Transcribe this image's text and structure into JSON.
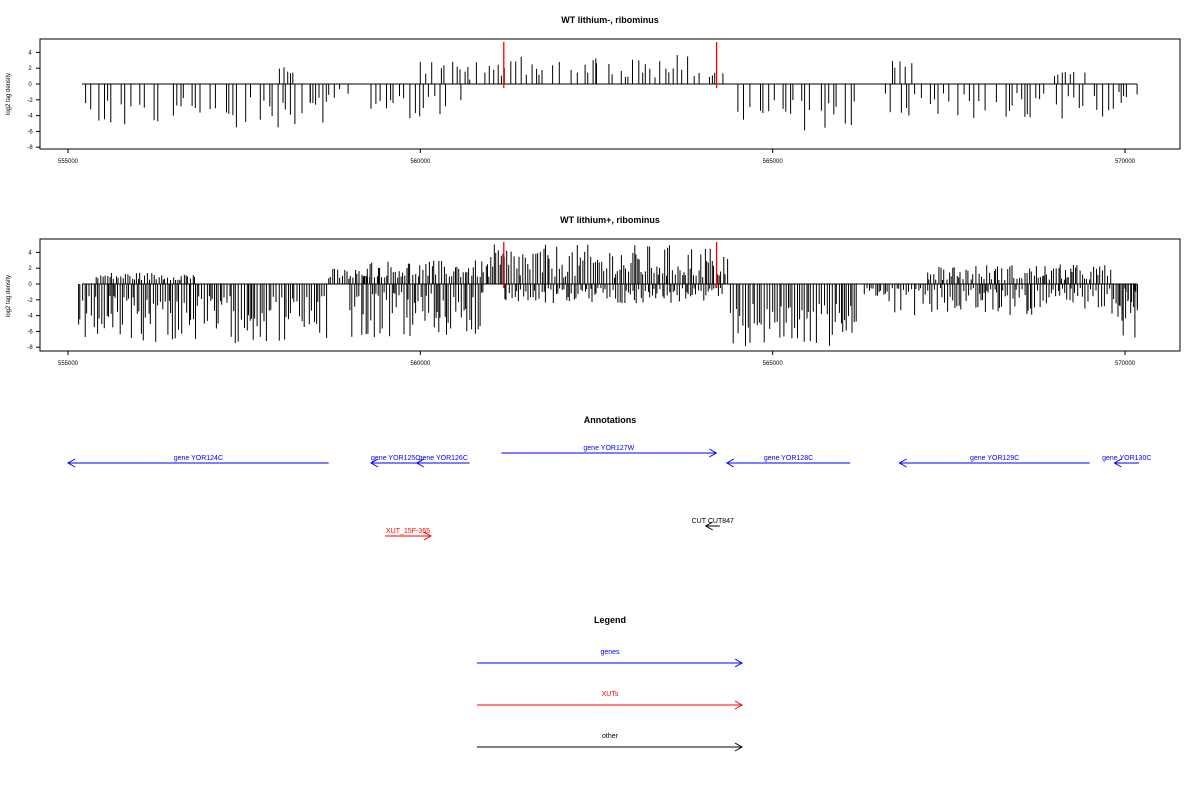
{
  "chart_data": [
    {
      "type": "bar",
      "title": "WT lithium-, ribominus",
      "ylabel": "log2 tag density",
      "xlim": [
        555000,
        570200
      ],
      "ylim": [
        -8,
        5
      ],
      "yticks": [
        -8,
        -6,
        -4,
        -2,
        0,
        2,
        4
      ],
      "ytick_labels": [
        "-8",
        "-6",
        "-4",
        "-2",
        "0",
        "2",
        "4"
      ],
      "xticks": [
        555000,
        560000,
        565000,
        570000
      ],
      "xtick_labels": [
        "555000",
        "560000",
        "565000",
        "570000"
      ],
      "markers": [
        561170,
        564190
      ],
      "marker_color": "#ff0000",
      "density": "sparse",
      "segments": [
        {
          "start": 555250,
          "end": 555350,
          "sign": -1,
          "min": 2.0,
          "max": 4.0
        },
        {
          "start": 555350,
          "end": 558600,
          "sign": -1,
          "min": 1.5,
          "max": 5.5
        },
        {
          "start": 558000,
          "end": 558200,
          "sign": 1,
          "min": 1.0,
          "max": 2.5
        },
        {
          "start": 558200,
          "end": 558700,
          "sign": -1,
          "min": 1.5,
          "max": 5.0
        },
        {
          "start": 558700,
          "end": 559000,
          "sign": -1,
          "min": 0.5,
          "max": 2.5
        },
        {
          "start": 559300,
          "end": 560600,
          "sign": -1,
          "min": 1.5,
          "max": 4.5
        },
        {
          "start": 560000,
          "end": 560700,
          "sign": 1,
          "min": 1.0,
          "max": 3.5
        },
        {
          "start": 560700,
          "end": 561150,
          "sign": 1,
          "min": 0.5,
          "max": 3.5
        },
        {
          "start": 561150,
          "end": 562500,
          "sign": 1,
          "min": 1.0,
          "max": 3.5
        },
        {
          "start": 562500,
          "end": 564200,
          "sign": 1,
          "min": 0.8,
          "max": 3.8
        },
        {
          "start": 564200,
          "end": 564300,
          "sign": 1,
          "min": 1.0,
          "max": 3.5
        },
        {
          "start": 564450,
          "end": 566200,
          "sign": -1,
          "min": 2.0,
          "max": 6.0
        },
        {
          "start": 566600,
          "end": 567800,
          "sign": -1,
          "min": 1.0,
          "max": 4.0
        },
        {
          "start": 566700,
          "end": 567000,
          "sign": 1,
          "min": 2.0,
          "max": 3.0
        },
        {
          "start": 567800,
          "end": 570200,
          "sign": -1,
          "min": 1.0,
          "max": 4.5
        },
        {
          "start": 569000,
          "end": 569800,
          "sign": 1,
          "min": 1.0,
          "max": 2.0
        }
      ]
    },
    {
      "type": "bar",
      "title": "WT lithium+, ribominus",
      "ylabel": "log2 tag density",
      "xlim": [
        555000,
        570200
      ],
      "ylim": [
        -8,
        5
      ],
      "yticks": [
        -8,
        -6,
        -4,
        -2,
        0,
        2,
        4
      ],
      "ytick_labels": [
        "-8",
        "-6",
        "-4",
        "-2",
        "0",
        "2",
        "4"
      ],
      "xticks": [
        555000,
        560000,
        565000,
        570000
      ],
      "xtick_labels": [
        "555000",
        "560000",
        "565000",
        "570000"
      ],
      "markers": [
        561170,
        564190
      ],
      "marker_color": "#ff0000",
      "density": "dense",
      "segments": [
        {
          "start": 555150,
          "end": 558700,
          "sign": -1,
          "min": 1.5,
          "max": 7.5
        },
        {
          "start": 555400,
          "end": 556800,
          "sign": 1,
          "min": 0.5,
          "max": 1.5
        },
        {
          "start": 558700,
          "end": 559300,
          "sign": 1,
          "min": 0.5,
          "max": 2.0
        },
        {
          "start": 559000,
          "end": 560900,
          "sign": -1,
          "min": 1.0,
          "max": 7.0
        },
        {
          "start": 559200,
          "end": 561000,
          "sign": 1,
          "min": 0.8,
          "max": 3.0
        },
        {
          "start": 561000,
          "end": 564400,
          "sign": 1,
          "min": 0.8,
          "max": 5.0
        },
        {
          "start": 561200,
          "end": 564300,
          "sign": -1,
          "min": 0.5,
          "max": 2.5
        },
        {
          "start": 564400,
          "end": 566200,
          "sign": -1,
          "min": 2.5,
          "max": 8.0
        },
        {
          "start": 566300,
          "end": 566600,
          "sign": -1,
          "min": 0.5,
          "max": 1.5
        },
        {
          "start": 566600,
          "end": 570200,
          "sign": -1,
          "min": 0.5,
          "max": 4.0
        },
        {
          "start": 567200,
          "end": 569800,
          "sign": 1,
          "min": 0.5,
          "max": 2.5
        },
        {
          "start": 569900,
          "end": 570200,
          "sign": -1,
          "min": 2.0,
          "max": 7.0
        }
      ]
    }
  ],
  "annotations": {
    "title": "Annotations",
    "features": [
      {
        "label": "gene YOR124C",
        "start": 555000,
        "end": 558700,
        "strand": "-",
        "color": "#0000ff",
        "row": 0
      },
      {
        "label": "gene YOR125C",
        "start": 559300,
        "end": 560000,
        "strand": "-",
        "color": "#0000ff",
        "row": 0
      },
      {
        "label": "gene YOR126C",
        "start": 559950,
        "end": 560700,
        "strand": "-",
        "color": "#0000ff",
        "row": 0
      },
      {
        "label": "gene YOR127W",
        "start": 561150,
        "end": 564200,
        "strand": "+",
        "color": "#0000ff",
        "row": 1
      },
      {
        "label": "gene YOR128C",
        "start": 564350,
        "end": 566100,
        "strand": "-",
        "color": "#0000ff",
        "row": 0
      },
      {
        "label": "gene YOR129C",
        "start": 566800,
        "end": 569500,
        "strand": "-",
        "color": "#0000ff",
        "row": 0
      },
      {
        "label": "gene YOR130C",
        "start": 569850,
        "end": 570200,
        "strand": "-",
        "color": "#0000ff",
        "row": 0
      },
      {
        "label": "XUT_15F-365",
        "start": 559500,
        "end": 560150,
        "strand": "+",
        "color": "#ff0000",
        "row": 2
      },
      {
        "label": "CUT CUT847",
        "start": 564050,
        "end": 564250,
        "strand": "-",
        "color": "#000000",
        "row": 3
      }
    ]
  },
  "legend": {
    "title": "Legend",
    "items": [
      {
        "label": "genes",
        "color": "#0000ff"
      },
      {
        "label": "XUTs",
        "color": "#ff0000"
      },
      {
        "label": "other",
        "color": "#000000"
      }
    ]
  }
}
